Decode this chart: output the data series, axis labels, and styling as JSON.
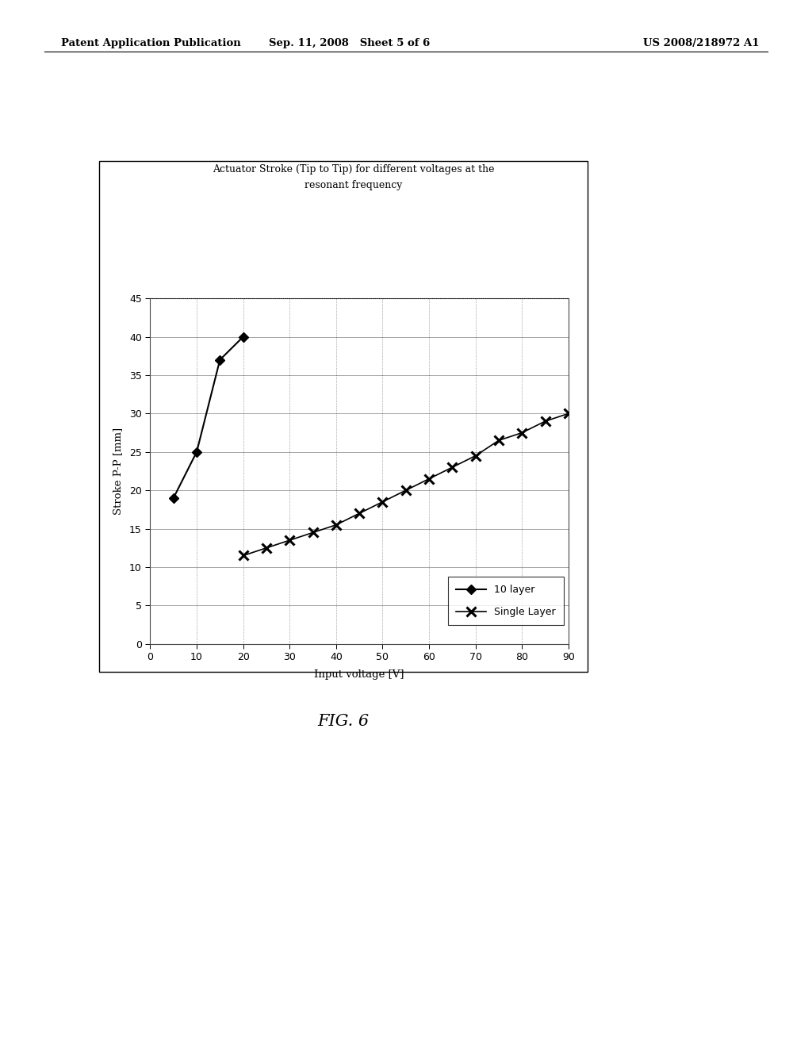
{
  "title_line1": "Actuator Stroke (Tip to Tip) for different voltages at the",
  "title_line2": "resonant frequency",
  "xlabel": "Input voltage [V]",
  "ylabel": "Stroke P-P [mm]",
  "xlim": [
    0,
    90
  ],
  "ylim": [
    0,
    45
  ],
  "xticks": [
    0,
    10,
    20,
    30,
    40,
    50,
    60,
    70,
    80,
    90
  ],
  "yticks": [
    0,
    5,
    10,
    15,
    20,
    25,
    30,
    35,
    40,
    45
  ],
  "series_10layer": {
    "x": [
      5,
      10,
      15,
      20
    ],
    "y": [
      19,
      25,
      37,
      40
    ],
    "label": "10 layer",
    "color": "black",
    "marker": "D",
    "markersize": 6,
    "linewidth": 1.5
  },
  "series_single": {
    "x": [
      20,
      25,
      30,
      35,
      40,
      45,
      50,
      55,
      60,
      65,
      70,
      75,
      80,
      85,
      90
    ],
    "y": [
      11.5,
      12.5,
      13.5,
      14.5,
      15.5,
      17.0,
      18.5,
      20.0,
      21.5,
      23.0,
      24.5,
      26.5,
      27.5,
      29.0,
      30.0
    ],
    "label": "Single Layer",
    "color": "black",
    "marker": "x",
    "markersize": 9,
    "linewidth": 1.2
  },
  "background_outer": "#ffffff",
  "background_plot": "#ffffff",
  "fig_caption": "FIG. 6",
  "header_left": "Patent Application Publication",
  "header_center": "Sep. 11, 2008   Sheet 5 of 6",
  "header_right": "US 2008/218972 A1"
}
